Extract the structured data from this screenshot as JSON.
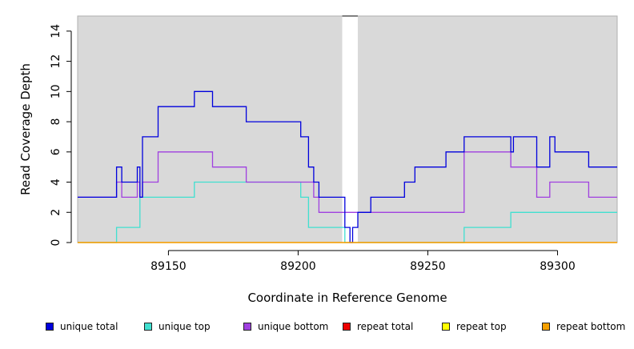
{
  "chart_data": {
    "type": "line",
    "title": "",
    "xlabel": "Coordinate in Reference Genome",
    "ylabel": "Read Coverage Depth",
    "xlim": [
      89115,
      89323
    ],
    "ylim": [
      0,
      15
    ],
    "xticks": [
      89150,
      89200,
      89250,
      89300
    ],
    "yticks": [
      0,
      2,
      4,
      6,
      8,
      10,
      12,
      14
    ],
    "background": "#d9d9d9",
    "gap_region": [
      89217,
      89223
    ],
    "legend_position": "bottom",
    "series": [
      {
        "name": "unique total",
        "color": "#0000dd",
        "steps": [
          [
            89115,
            3
          ],
          [
            89130,
            5
          ],
          [
            89132,
            4
          ],
          [
            89138,
            5
          ],
          [
            89139,
            3
          ],
          [
            89140,
            7
          ],
          [
            89146,
            9
          ],
          [
            89160,
            10
          ],
          [
            89167,
            9
          ],
          [
            89180,
            8
          ],
          [
            89201,
            7
          ],
          [
            89204,
            5
          ],
          [
            89206,
            4
          ],
          [
            89208,
            3
          ],
          [
            89218,
            1
          ],
          [
            89220,
            0
          ],
          [
            89221,
            1
          ],
          [
            89223,
            2
          ],
          [
            89228,
            3
          ],
          [
            89241,
            4
          ],
          [
            89245,
            5
          ],
          [
            89257,
            6
          ],
          [
            89264,
            7
          ],
          [
            89282,
            6
          ],
          [
            89283,
            7
          ],
          [
            89292,
            5
          ],
          [
            89297,
            7
          ],
          [
            89299,
            6
          ],
          [
            89312,
            5
          ],
          [
            89323,
            5
          ]
        ]
      },
      {
        "name": "unique top",
        "color": "#40e0d0",
        "steps": [
          [
            89115,
            0
          ],
          [
            89130,
            1
          ],
          [
            89139,
            3
          ],
          [
            89160,
            4
          ],
          [
            89201,
            3
          ],
          [
            89204,
            1
          ],
          [
            89218,
            0
          ],
          [
            89264,
            1
          ],
          [
            89282,
            2
          ],
          [
            89323,
            2
          ]
        ]
      },
      {
        "name": "unique bottom",
        "color": "#a040e0",
        "steps": [
          [
            89115,
            3
          ],
          [
            89130,
            4
          ],
          [
            89132,
            3
          ],
          [
            89138,
            4
          ],
          [
            89139,
            3
          ],
          [
            89140,
            4
          ],
          [
            89146,
            6
          ],
          [
            89167,
            5
          ],
          [
            89180,
            4
          ],
          [
            89201,
            4
          ],
          [
            89206,
            3
          ],
          [
            89208,
            2
          ],
          [
            89217,
            2
          ],
          [
            89264,
            6
          ],
          [
            89282,
            5
          ],
          [
            89292,
            3
          ],
          [
            89297,
            4
          ],
          [
            89312,
            3
          ],
          [
            89323,
            3
          ]
        ]
      },
      {
        "name": "repeat total",
        "color": "#ee0000",
        "steps": [
          [
            89115,
            0
          ],
          [
            89323,
            0
          ]
        ]
      },
      {
        "name": "repeat top",
        "color": "#ffff00",
        "steps": [
          [
            89115,
            0
          ],
          [
            89323,
            0
          ]
        ]
      },
      {
        "name": "repeat bottom",
        "color": "#f5a000",
        "steps": [
          [
            89115,
            0
          ],
          [
            89323,
            0
          ]
        ]
      }
    ]
  }
}
